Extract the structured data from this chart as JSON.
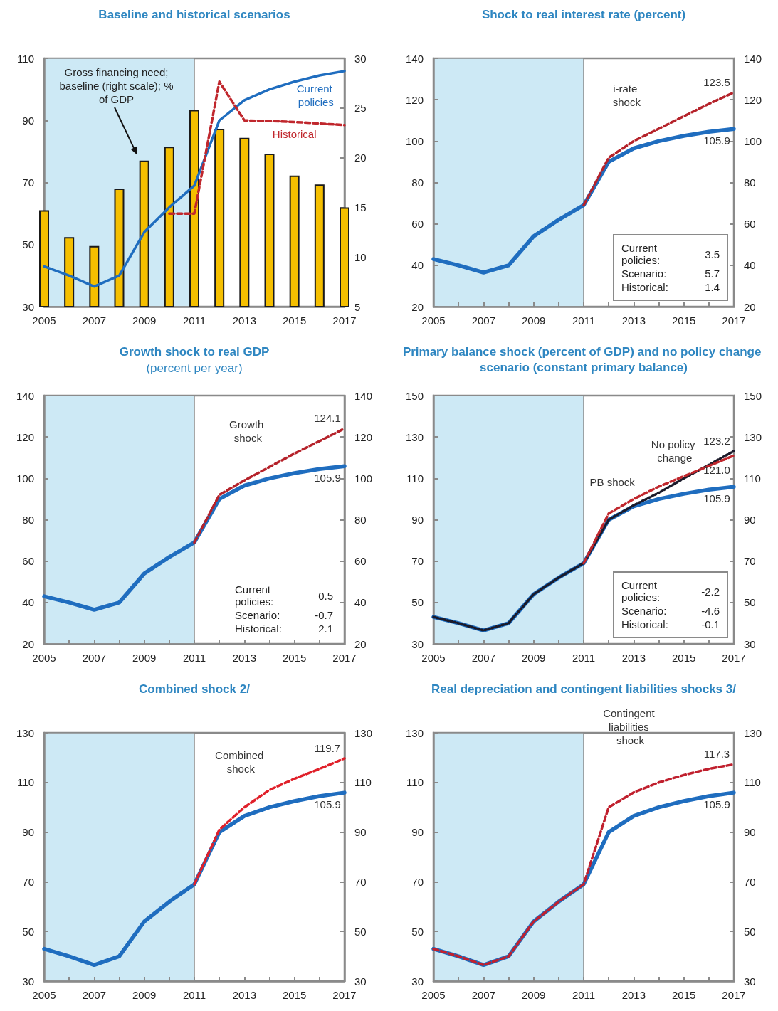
{
  "chart_data": [
    {
      "type": "line",
      "title": "Baseline and historical scenarios",
      "x": [
        2005,
        2006,
        2007,
        2008,
        2009,
        2010,
        2011,
        2012,
        2013,
        2014,
        2015,
        2016,
        2017
      ],
      "xlim": [
        2005,
        2017
      ],
      "xticks": [
        2005,
        {
          "value": 2006,
          "label": null
        },
        2007,
        {
          "value": 2008,
          "label": null
        },
        2009,
        {
          "value": 2010,
          "label": null
        },
        2011,
        {
          "value": 2012,
          "label": null
        },
        2013,
        {
          "value": 2014,
          "label": null
        },
        2015,
        {
          "value": 2016,
          "label": null
        },
        2017
      ],
      "ylim": [
        30,
        110
      ],
      "yticks": [
        30,
        50,
        70,
        90,
        110
      ],
      "y2lim": [
        5,
        30
      ],
      "y2ticks": [
        5,
        10,
        15,
        20,
        25,
        30
      ],
      "marker": "none",
      "bands": [
        {
          "axis": "x",
          "from": 2005,
          "to": 2011,
          "color": "#cde9f5"
        }
      ],
      "series": [
        {
          "name": "Gross financing need; baseline (right scale); % of GDP",
          "type": "bar",
          "axis": "y2",
          "color": "#f5bf00",
          "values": [
            14.7,
            12.0,
            11.1,
            16.9,
            19.7,
            21.1,
            24.8,
            22.9,
            22.0,
            20.4,
            18.2,
            17.3,
            15.0
          ]
        },
        {
          "name": "Current policies",
          "color": "#1f6dbf",
          "line_style": "solid",
          "values": [
            43,
            40,
            36.5,
            40,
            54,
            62,
            69,
            90,
            96.5,
            100,
            102.5,
            104.5,
            105.9
          ]
        },
        {
          "name": "Historical",
          "color": "#c0272d",
          "line_style": "dashed",
          "values": [
            null,
            null,
            null,
            null,
            null,
            60,
            60,
            102.5,
            90,
            89.8,
            89.5,
            89,
            88.5
          ]
        }
      ]
    },
    {
      "type": "line",
      "title": "Shock to real interest rate (percent)",
      "x": [
        2005,
        2006,
        2007,
        2008,
        2009,
        2010,
        2011,
        2012,
        2013,
        2014,
        2015,
        2016,
        2017
      ],
      "xlim": [
        2005,
        2017
      ],
      "xticks": [
        2005,
        {
          "value": 2006,
          "label": null
        },
        2007,
        {
          "value": 2008,
          "label": null
        },
        2009,
        {
          "value": 2010,
          "label": null
        },
        2011,
        {
          "value": 2012,
          "label": null
        },
        2013,
        {
          "value": 2014,
          "label": null
        },
        2015,
        {
          "value": 2016,
          "label": null
        },
        2017
      ],
      "ylim": [
        20,
        140
      ],
      "yticks": [
        20,
        40,
        60,
        80,
        100,
        120,
        140
      ],
      "y2lim": [
        20,
        140
      ],
      "y2ticks": [
        20,
        40,
        60,
        80,
        100,
        120,
        140
      ],
      "marker": "none",
      "bands": [
        {
          "axis": "x",
          "from": 2005,
          "to": 2011,
          "color": "#cde9f5"
        }
      ],
      "annotations": [
        "Current policies: 3.5",
        "Scenario: 5.7",
        "Historical: 1.4"
      ],
      "series": [
        {
          "color": "#1f6dbf",
          "line_style": "solid",
          "values": [
            43,
            40,
            36.5,
            40,
            54,
            62,
            69,
            90,
            96.5,
            100,
            102.5,
            104.5,
            105.9
          ],
          "value_labels": [
            null,
            null,
            null,
            null,
            null,
            null,
            null,
            null,
            null,
            null,
            null,
            null,
            "105.9"
          ]
        },
        {
          "name": "i-rate shock",
          "color": "#b5222a",
          "line_style": "dashed",
          "values": [
            null,
            null,
            null,
            null,
            null,
            null,
            69,
            92,
            100,
            106,
            112,
            118,
            123.5
          ],
          "value_labels": [
            null,
            null,
            null,
            null,
            null,
            null,
            null,
            null,
            null,
            null,
            null,
            null,
            "123.5"
          ]
        }
      ]
    },
    {
      "type": "line",
      "title": "Growth shock to real GDP",
      "subtitle": "(percent per year)",
      "x": [
        2005,
        2006,
        2007,
        2008,
        2009,
        2010,
        2011,
        2012,
        2013,
        2014,
        2015,
        2016,
        2017
      ],
      "xlim": [
        2005,
        2017
      ],
      "xticks": [
        2005,
        {
          "value": 2006,
          "label": null
        },
        2007,
        {
          "value": 2008,
          "label": null
        },
        2009,
        {
          "value": 2010,
          "label": null
        },
        2011,
        {
          "value": 2012,
          "label": null
        },
        2013,
        {
          "value": 2014,
          "label": null
        },
        2015,
        {
          "value": 2016,
          "label": null
        },
        2017
      ],
      "ylim": [
        20,
        140
      ],
      "yticks": [
        20,
        40,
        60,
        80,
        100,
        120,
        140
      ],
      "y2lim": [
        20,
        140
      ],
      "y2ticks": [
        20,
        40,
        60,
        80,
        100,
        120,
        140
      ],
      "marker": "none",
      "bands": [
        {
          "axis": "x",
          "from": 2005,
          "to": 2011,
          "color": "#cde9f5"
        }
      ],
      "annotations": [
        "Current policies: 0.5",
        "Scenario: -0.7",
        "Historical: 2.1"
      ],
      "series": [
        {
          "color": "#1f6dbf",
          "line_style": "solid",
          "values": [
            43,
            40,
            36.5,
            40,
            54,
            62,
            69,
            90,
            96.5,
            100,
            102.5,
            104.5,
            105.9
          ],
          "value_labels": [
            null,
            null,
            null,
            null,
            null,
            null,
            null,
            null,
            null,
            null,
            null,
            null,
            "105.9"
          ]
        },
        {
          "name": "Growth shock",
          "color": "#b5222a",
          "line_style": "dashed",
          "values": [
            null,
            null,
            null,
            null,
            null,
            null,
            69,
            92,
            99,
            105.5,
            112,
            118,
            124.1
          ],
          "value_labels": [
            null,
            null,
            null,
            null,
            null,
            null,
            null,
            null,
            null,
            null,
            null,
            null,
            "124.1"
          ]
        }
      ]
    },
    {
      "type": "line",
      "title": "Primary balance shock (percent of GDP) and no policy change scenario (constant primary balance)",
      "x": [
        2005,
        2006,
        2007,
        2008,
        2009,
        2010,
        2011,
        2012,
        2013,
        2014,
        2015,
        2016,
        2017
      ],
      "xlim": [
        2005,
        2017
      ],
      "xticks": [
        2005,
        {
          "value": 2006,
          "label": null
        },
        2007,
        {
          "value": 2008,
          "label": null
        },
        2009,
        {
          "value": 2010,
          "label": null
        },
        2011,
        {
          "value": 2012,
          "label": null
        },
        2013,
        {
          "value": 2014,
          "label": null
        },
        2015,
        {
          "value": 2016,
          "label": null
        },
        2017
      ],
      "ylim": [
        30,
        150
      ],
      "yticks": [
        30,
        50,
        70,
        90,
        110,
        130,
        150
      ],
      "y2lim": [
        30,
        150
      ],
      "y2ticks": [
        30,
        50,
        70,
        90,
        110,
        130,
        150
      ],
      "marker": "none",
      "bands": [
        {
          "axis": "x",
          "from": 2005,
          "to": 2011,
          "color": "#cde9f5"
        }
      ],
      "annotations": [
        "Current policies: -2.2",
        "Scenario: -4.6",
        "Historical: -0.1"
      ],
      "series": [
        {
          "color": "#1f6dbf",
          "line_style": "solid",
          "values": [
            43,
            40,
            36.5,
            40,
            54,
            62,
            69,
            90,
            96.5,
            100,
            102.5,
            104.5,
            105.9
          ],
          "value_labels": [
            null,
            null,
            null,
            null,
            null,
            null,
            null,
            null,
            null,
            null,
            null,
            null,
            "105.9"
          ]
        },
        {
          "name": "No policy change",
          "color": "#1a1a2a",
          "line_style": "dotted",
          "values": [
            43,
            40,
            36.5,
            40,
            54,
            62,
            69,
            90,
            97,
            103,
            110,
            116.5,
            123.2
          ],
          "value_labels": [
            null,
            null,
            null,
            null,
            null,
            null,
            null,
            null,
            null,
            null,
            null,
            null,
            "123.2"
          ]
        },
        {
          "name": "PB shock",
          "color": "#c0272d",
          "line_style": "dashed",
          "values": [
            null,
            null,
            null,
            null,
            null,
            null,
            69,
            93,
            100,
            106,
            111,
            116,
            121.0
          ],
          "value_labels": [
            null,
            null,
            null,
            null,
            null,
            null,
            null,
            null,
            null,
            null,
            null,
            null,
            "121.0"
          ]
        }
      ]
    },
    {
      "type": "line",
      "title": "Combined shock 2/",
      "x": [
        2005,
        2006,
        2007,
        2008,
        2009,
        2010,
        2011,
        2012,
        2013,
        2014,
        2015,
        2016,
        2017
      ],
      "xlim": [
        2005,
        2017
      ],
      "xticks": [
        2005,
        {
          "value": 2006,
          "label": null
        },
        2007,
        {
          "value": 2008,
          "label": null
        },
        2009,
        {
          "value": 2010,
          "label": null
        },
        2011,
        {
          "value": 2012,
          "label": null
        },
        2013,
        {
          "value": 2014,
          "label": null
        },
        2015,
        {
          "value": 2016,
          "label": null
        },
        2017
      ],
      "ylim": [
        30,
        130
      ],
      "yticks": [
        30,
        50,
        70,
        90,
        110,
        130
      ],
      "y2lim": [
        30,
        130
      ],
      "y2ticks": [
        30,
        50,
        70,
        90,
        110,
        130
      ],
      "marker": "none",
      "bands": [
        {
          "axis": "x",
          "from": 2005,
          "to": 2011,
          "color": "#cde9f5"
        }
      ],
      "series": [
        {
          "color": "#1f6dbf",
          "line_style": "solid",
          "values": [
            43,
            40,
            36.5,
            40,
            54,
            62,
            69,
            90,
            96.5,
            100,
            102.5,
            104.5,
            105.9
          ],
          "value_labels": [
            null,
            null,
            null,
            null,
            null,
            null,
            null,
            null,
            null,
            null,
            null,
            null,
            "105.9"
          ]
        },
        {
          "name": "Combined shock",
          "color": "#e0202a",
          "line_style": "dashed",
          "values": [
            null,
            null,
            null,
            null,
            null,
            null,
            69,
            91,
            100,
            107,
            111.5,
            115.5,
            119.7
          ],
          "value_labels": [
            null,
            null,
            null,
            null,
            null,
            null,
            null,
            null,
            null,
            null,
            null,
            null,
            "119.7"
          ]
        }
      ]
    },
    {
      "type": "line",
      "title": "Real depreciation and contingent liabilities shocks 3/",
      "x": [
        2005,
        2006,
        2007,
        2008,
        2009,
        2010,
        2011,
        2012,
        2013,
        2014,
        2015,
        2016,
        2017
      ],
      "xlim": [
        2005,
        2017
      ],
      "xticks": [
        2005,
        {
          "value": 2006,
          "label": null
        },
        2007,
        {
          "value": 2008,
          "label": null
        },
        2009,
        {
          "value": 2010,
          "label": null
        },
        2011,
        {
          "value": 2012,
          "label": null
        },
        2013,
        {
          "value": 2014,
          "label": null
        },
        2015,
        {
          "value": 2016,
          "label": null
        },
        2017
      ],
      "ylim": [
        30,
        130
      ],
      "yticks": [
        30,
        50,
        70,
        90,
        110,
        130
      ],
      "y2lim": [
        30,
        130
      ],
      "y2ticks": [
        30,
        50,
        70,
        90,
        110,
        130
      ],
      "marker": "none",
      "bands": [
        {
          "axis": "x",
          "from": 2005,
          "to": 2011,
          "color": "#cde9f5"
        }
      ],
      "series": [
        {
          "color": "#1f6dbf",
          "line_style": "solid",
          "values": [
            43,
            40,
            36.5,
            40,
            54,
            62,
            69,
            90,
            96.5,
            100,
            102.5,
            104.5,
            105.9
          ],
          "value_labels": [
            null,
            null,
            null,
            null,
            null,
            null,
            null,
            null,
            null,
            null,
            null,
            null,
            "105.9"
          ]
        },
        {
          "name": "Contingent liabilities shock",
          "color": "#c0202e",
          "line_style": "dashed",
          "values": [
            43,
            40,
            36.5,
            40,
            54,
            62,
            69,
            100,
            106,
            110,
            113,
            115.5,
            117.3
          ],
          "value_labels": [
            null,
            null,
            null,
            null,
            null,
            null,
            null,
            null,
            null,
            null,
            null,
            null,
            "117.3"
          ]
        }
      ]
    }
  ]
}
